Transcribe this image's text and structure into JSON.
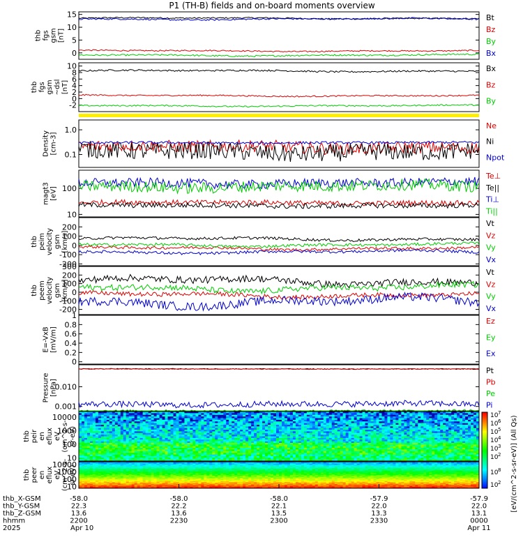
{
  "title": "P1 (TH-B) fields and on-board moments overview",
  "colors": {
    "black": "#000000",
    "red": "#dd0000",
    "green": "#00cc00",
    "blue": "#0000cc",
    "yellow": "#ffee00"
  },
  "chart_data": [
    {
      "type": "line",
      "id": "fgs-gsm",
      "ylabel": [
        "thb",
        "fgs",
        "gsm",
        "[nT]"
      ],
      "ylim": [
        -2.5,
        16
      ],
      "yticks": [
        15,
        10,
        5,
        0
      ],
      "series": [
        {
          "name": "Bt",
          "color": "black",
          "level": 13.5,
          "noise": 0.25
        },
        {
          "name": "Bz",
          "color": "red",
          "level": 0.8,
          "noise": 0.25
        },
        {
          "name": "By",
          "color": "green",
          "level": -0.9,
          "noise": 0.3
        },
        {
          "name": "Bx",
          "color": "blue",
          "level": 13.2,
          "noise": 0.3
        }
      ]
    },
    {
      "type": "line",
      "id": "fgs-gsm-dsl",
      "ylabel": [
        "thb",
        "fgs",
        "gsm",
        "~dsl",
        "[nT]"
      ],
      "ylim": [
        -4,
        11
      ],
      "yticks": [
        10,
        8,
        6,
        4,
        2,
        0,
        -2
      ],
      "series": [
        {
          "name": "Bx",
          "color": "black",
          "level": 8.5,
          "noise": 0.25
        },
        {
          "name": "Bz",
          "color": "red",
          "level": 0.9,
          "noise": 0.2
        },
        {
          "name": "By",
          "color": "green",
          "level": -2.2,
          "noise": 0.2
        }
      ]
    },
    {
      "type": "line",
      "id": "density",
      "ylabel": [
        "Density",
        "[cm-3]"
      ],
      "scale": "log",
      "ylim": [
        0.03,
        2.5
      ],
      "ytick_labels": [
        "1.0",
        "0.1"
      ],
      "yticks": [
        1.0,
        0.1
      ],
      "series": [
        {
          "name": "Ne",
          "color": "red",
          "level": 0.2,
          "noise": 0.25
        },
        {
          "name": "Ni",
          "color": "black",
          "level": 0.13,
          "noise": 0.35
        },
        {
          "name": "Npot",
          "color": "blue",
          "level": 0.3,
          "noise": 0.05
        }
      ]
    },
    {
      "type": "line",
      "id": "temperature",
      "ylabel": [
        "magt3",
        "[eV]"
      ],
      "scale": "log",
      "ylim": [
        8,
        500
      ],
      "yticks": [
        100,
        10
      ],
      "series": [
        {
          "name": "Te⊥",
          "color": "red",
          "level": 28,
          "noise": 0.1
        },
        {
          "name": "Te||",
          "color": "black",
          "level": 22,
          "noise": 0.1
        },
        {
          "name": "Ti⊥",
          "color": "blue",
          "level": 160,
          "noise": 0.18
        },
        {
          "name": "Ti||",
          "color": "green",
          "level": 120,
          "noise": 0.22
        }
      ]
    },
    {
      "type": "line",
      "id": "peim-velocity",
      "ylabel": [
        "thb",
        "peim",
        "velocity",
        "gsm",
        "[km/s]"
      ],
      "ylim": [
        -220,
        300
      ],
      "yticks": [
        200,
        100,
        0,
        -100,
        -200
      ],
      "series": [
        {
          "name": "Vt",
          "color": "black",
          "level": 70,
          "noise": 15
        },
        {
          "name": "Vz",
          "color": "red",
          "level": -30,
          "noise": 15
        },
        {
          "name": "Vy",
          "color": "green",
          "level": 5,
          "noise": 15
        },
        {
          "name": "Vx",
          "color": "blue",
          "level": -70,
          "noise": 15
        }
      ]
    },
    {
      "type": "line",
      "id": "peem-velocity",
      "ylabel": [
        "thb",
        "peem",
        "velocity",
        "gsm",
        "[km/s]"
      ],
      "ylim": [
        -260,
        300
      ],
      "yticks": [
        300,
        200,
        100,
        0,
        -100,
        -200
      ],
      "series": [
        {
          "name": "Vt",
          "color": "black",
          "level": 130,
          "noise": 40
        },
        {
          "name": "Vz",
          "color": "red",
          "level": -30,
          "noise": 25
        },
        {
          "name": "Vy",
          "color": "green",
          "level": 50,
          "noise": 35
        },
        {
          "name": "Vx",
          "color": "blue",
          "level": -110,
          "noise": 50
        }
      ]
    },
    {
      "type": "line",
      "id": "efield",
      "ylabel": [
        "E=-VxB",
        "[mV/m]"
      ],
      "ylim": [
        -0.05,
        1.0
      ],
      "yticks": [
        1.0,
        0.8,
        0.6,
        0.4,
        0.2,
        0.0
      ],
      "series": [
        {
          "name": "Ez",
          "color": "red",
          "level": 0,
          "noise": 0
        },
        {
          "name": "Ey",
          "color": "green",
          "level": 0,
          "noise": 0
        },
        {
          "name": "Ex",
          "color": "blue",
          "level": 0,
          "noise": 0
        }
      ]
    },
    {
      "type": "line",
      "id": "pressure",
      "ylabel": [
        "Pressure",
        "[nPa]"
      ],
      "scale": "log",
      "ylim": [
        0.0006,
        0.13
      ],
      "ytick_labels": [
        "0.010",
        "0.001"
      ],
      "yticks": [
        0.01,
        0.001
      ],
      "series": [
        {
          "name": "Pt",
          "color": "black",
          "level": 0.08,
          "noise": 0.02
        },
        {
          "name": "Pb",
          "color": "red",
          "level": 0.08,
          "noise": 0.02
        },
        {
          "name": "Pe",
          "color": "green",
          "level": 0.0006,
          "noise": 0.05
        },
        {
          "name": "Pi",
          "color": "blue",
          "level": 0.0013,
          "noise": 0.15
        }
      ]
    },
    {
      "type": "heatmap",
      "id": "peir-en-eflux",
      "ylabel": [
        "thb",
        "peir",
        "en",
        "eflux",
        "eV",
        "(cm^2-s-",
        "sr-eV)"
      ],
      "scale": "log",
      "ylim": [
        6,
        25000
      ],
      "yticks": [
        10000,
        1000,
        100,
        10
      ]
    },
    {
      "type": "heatmap",
      "id": "peer-en-eflux",
      "ylabel": [
        "thb",
        "peer",
        "en",
        "eflux",
        "eV",
        "(cm^2-s-",
        "sr-eV)"
      ],
      "scale": "log",
      "ylim": [
        6,
        25000
      ],
      "yticks": [
        10000,
        1000,
        100,
        10
      ]
    }
  ],
  "colorbar": {
    "label": "[eV/(cm^2-s-sr-eV)] (All Qs)",
    "upper_ticks": [
      "10",
      "10",
      "10",
      "10",
      "10",
      "10"
    ],
    "upper_exps": [
      "7",
      "6",
      "5",
      "4",
      "3",
      "2"
    ],
    "lower_ticks": [
      "10",
      "10"
    ],
    "lower_exps": [
      "8",
      "2"
    ]
  },
  "xaxis": {
    "tick_count": 5,
    "rows": [
      {
        "label": "thb_X-GSM",
        "values": [
          "-58.0",
          "-58.0",
          "-58.0",
          "-57.9",
          "-57.9"
        ]
      },
      {
        "label": "thb_Y-GSM",
        "values": [
          "22.3",
          "22.2",
          "22.1",
          "22.0",
          "22.0"
        ]
      },
      {
        "label": "thb_Z-GSM",
        "values": [
          "13.6",
          "13.6",
          "13.5",
          "13.3",
          "13.1"
        ]
      },
      {
        "label": "hhmm",
        "values": [
          "2200",
          "2230",
          "2300",
          "2330",
          "0000"
        ]
      },
      {
        "label": "2025",
        "values": [
          "Apr 10",
          "",
          "",
          "",
          "Apr 11"
        ]
      }
    ]
  }
}
